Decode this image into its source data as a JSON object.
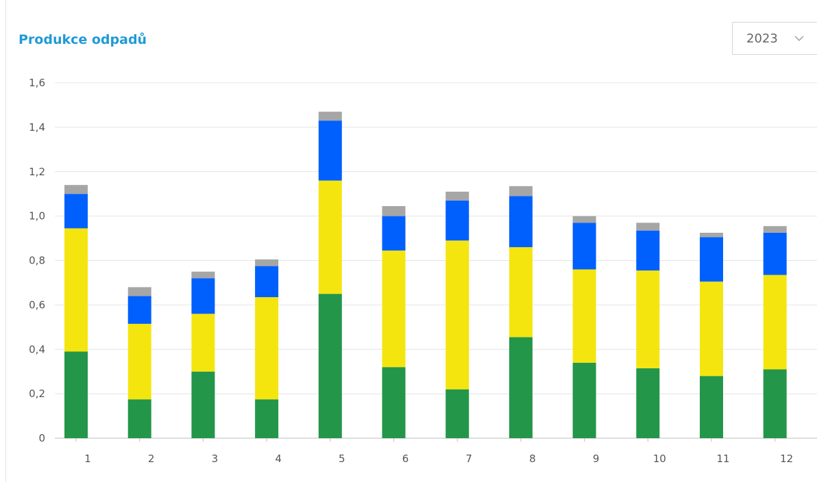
{
  "title": "Produkce odpadů",
  "year_select": {
    "value": "2023",
    "icon": "chevron-down-icon"
  },
  "chart_data": {
    "type": "bar",
    "stacked": true,
    "title": "Produkce odpadů",
    "xlabel": "",
    "ylabel": "",
    "ylim": [
      0,
      1.6
    ],
    "yticks": [
      "0",
      "0,2",
      "0,4",
      "0,6",
      "0,8",
      "1,0",
      "1,2",
      "1,4",
      "1,6"
    ],
    "grid": true,
    "legend": "none",
    "categories": [
      "1",
      "2",
      "3",
      "4",
      "5",
      "6",
      "7",
      "8",
      "9",
      "10",
      "11",
      "12"
    ],
    "series": [
      {
        "color": "#23964a",
        "values": [
          0.39,
          0.175,
          0.3,
          0.175,
          0.65,
          0.32,
          0.22,
          0.455,
          0.34,
          0.315,
          0.28,
          0.31
        ]
      },
      {
        "color": "#f5e50f",
        "values": [
          0.555,
          0.34,
          0.26,
          0.46,
          0.51,
          0.525,
          0.67,
          0.405,
          0.42,
          0.44,
          0.425,
          0.425
        ]
      },
      {
        "color": "#0060fd",
        "values": [
          0.155,
          0.125,
          0.16,
          0.14,
          0.27,
          0.155,
          0.18,
          0.23,
          0.21,
          0.18,
          0.2,
          0.19
        ]
      },
      {
        "color": "#a6a6a6",
        "values": [
          0.04,
          0.04,
          0.03,
          0.03,
          0.04,
          0.045,
          0.04,
          0.045,
          0.03,
          0.035,
          0.02,
          0.03
        ]
      }
    ]
  }
}
